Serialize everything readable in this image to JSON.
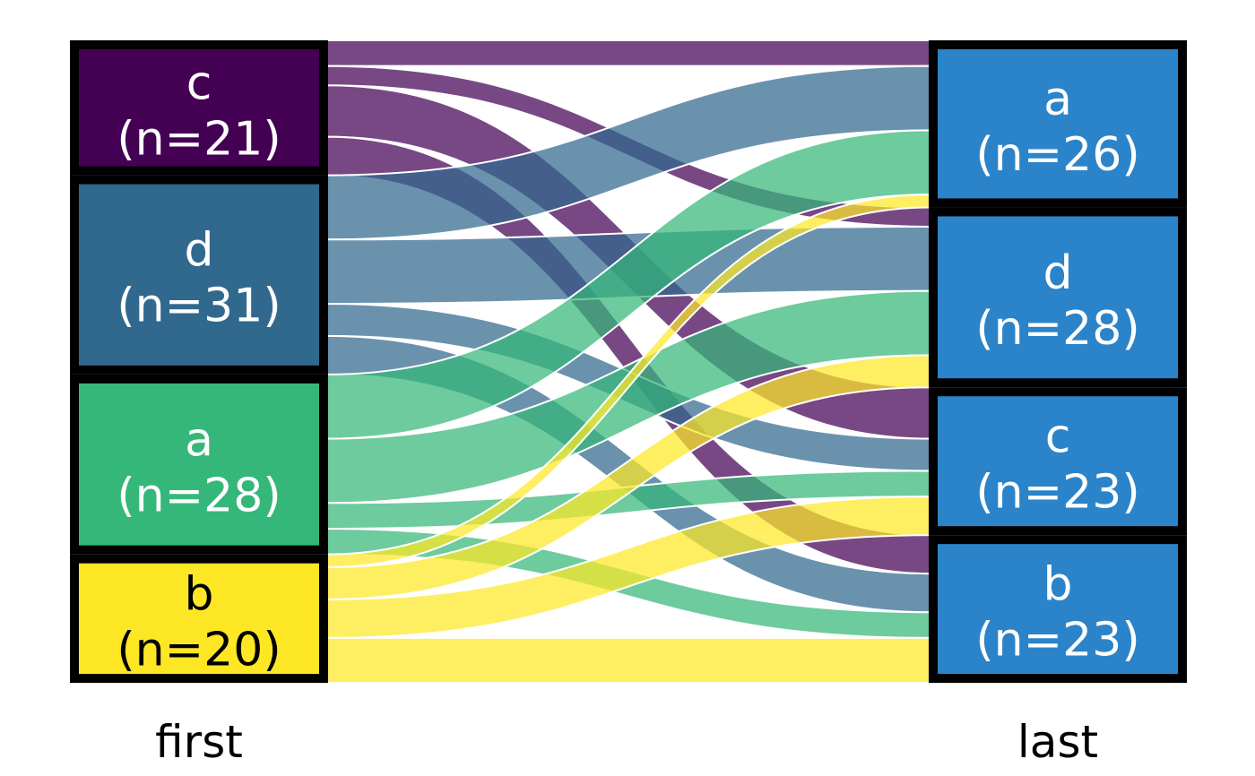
{
  "chart_data": {
    "type": "sankey",
    "subtype": "alluvial",
    "title": "",
    "axes": {
      "left": "first",
      "right": "last"
    },
    "legend": "none",
    "grid": false,
    "unit_total": 100,
    "left_nodes": [
      {
        "id": "c",
        "label": "c",
        "sublabel": "(n=21)",
        "n": 21,
        "color": "#440154",
        "text_color": "#ffffff"
      },
      {
        "id": "d",
        "label": "d",
        "sublabel": "(n=31)",
        "n": 31,
        "color": "#31688e",
        "text_color": "#ffffff"
      },
      {
        "id": "a",
        "label": "a",
        "sublabel": "(n=28)",
        "n": 28,
        "color": "#35b779",
        "text_color": "#ffffff"
      },
      {
        "id": "b",
        "label": "b",
        "sublabel": "(n=20)",
        "n": 20,
        "color": "#fde725",
        "text_color": "#000000"
      }
    ],
    "right_nodes": [
      {
        "id": "a",
        "label": "a",
        "sublabel": "(n=26)",
        "n": 26,
        "color": "#2b84c9",
        "text_color": "#ffffff"
      },
      {
        "id": "d",
        "label": "d",
        "sublabel": "(n=28)",
        "n": 28,
        "color": "#2b84c9",
        "text_color": "#ffffff"
      },
      {
        "id": "c",
        "label": "c",
        "sublabel": "(n=23)",
        "n": 23,
        "color": "#2b84c9",
        "text_color": "#ffffff"
      },
      {
        "id": "b",
        "label": "b",
        "sublabel": "(n=23)",
        "n": 23,
        "color": "#2b84c9",
        "text_color": "#ffffff"
      }
    ],
    "flows": [
      {
        "source": "c",
        "target": "a",
        "value": 4
      },
      {
        "source": "c",
        "target": "d",
        "value": 3
      },
      {
        "source": "c",
        "target": "c",
        "value": 8
      },
      {
        "source": "c",
        "target": "b",
        "value": 6
      },
      {
        "source": "d",
        "target": "a",
        "value": 10
      },
      {
        "source": "d",
        "target": "d",
        "value": 10
      },
      {
        "source": "d",
        "target": "c",
        "value": 5
      },
      {
        "source": "d",
        "target": "b",
        "value": 6
      },
      {
        "source": "a",
        "target": "a",
        "value": 10
      },
      {
        "source": "a",
        "target": "d",
        "value": 10
      },
      {
        "source": "a",
        "target": "c",
        "value": 4
      },
      {
        "source": "a",
        "target": "b",
        "value": 4
      },
      {
        "source": "b",
        "target": "a",
        "value": 2
      },
      {
        "source": "b",
        "target": "d",
        "value": 5
      },
      {
        "source": "b",
        "target": "c",
        "value": 6
      },
      {
        "source": "b",
        "target": "b",
        "value": 7
      }
    ],
    "flow_alpha": 0.72,
    "flow_gap_color": "#ffffff",
    "node_border_color": "#000000",
    "axis_label_color": "#000000"
  }
}
